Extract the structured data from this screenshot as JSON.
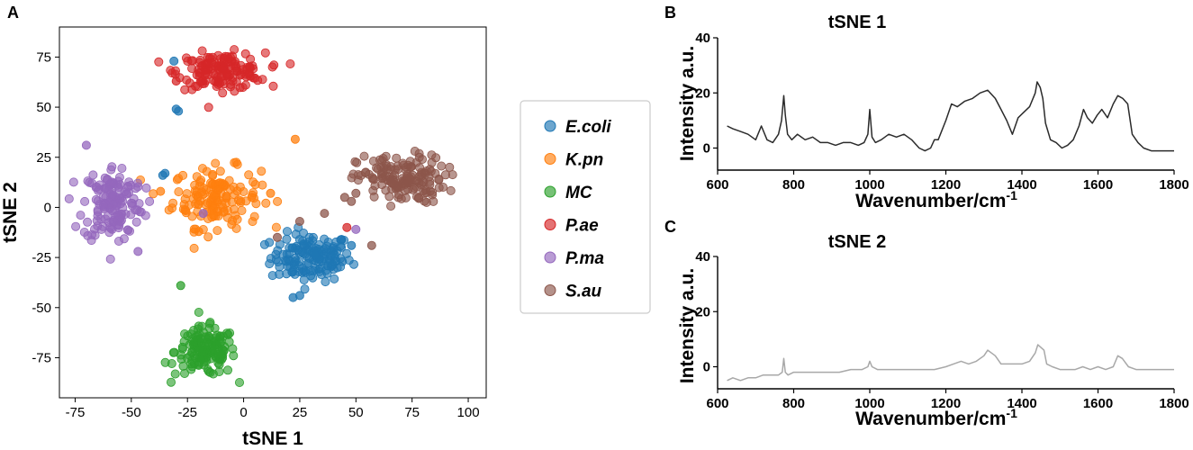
{
  "panel_labels": {
    "a": "A",
    "b": "B",
    "c": "C"
  },
  "chart_data": [
    {
      "type": "scatter",
      "panel": "A",
      "title": "",
      "xlabel": "tSNE 1",
      "ylabel": "tSNE 2",
      "xlim": [
        -82,
        108
      ],
      "ylim": [
        -95,
        90
      ],
      "xticks": [
        -75,
        -50,
        -25,
        0,
        25,
        50,
        75,
        100
      ],
      "xtick_labels": [
        "-75",
        "-50",
        "-25",
        "0",
        "25",
        "50",
        "75",
        "100"
      ],
      "yticks": [
        -75,
        -50,
        -25,
        0,
        25,
        50,
        75
      ],
      "ytick_labels": [
        "-75",
        "-50",
        "-25",
        "0",
        "25",
        "50",
        "75"
      ],
      "legend_position": "outside-right",
      "series": [
        {
          "name": "E.coli",
          "color": "#1f77b4",
          "cluster": {
            "cx": 30,
            "cy": -25,
            "sx": 12,
            "sy": 8
          },
          "outliers": [
            [
              -31,
              73
            ],
            [
              -30,
              49
            ],
            [
              -29,
              48
            ],
            [
              -36,
              16
            ],
            [
              -35,
              17
            ],
            [
              25,
              -44
            ],
            [
              22,
              -45
            ],
            [
              44,
              -27
            ],
            [
              48,
              -19
            ],
            [
              19,
              -27
            ]
          ]
        },
        {
          "name": "K.pn",
          "color": "#ff7f0e",
          "cluster": {
            "cx": -12,
            "cy": 5,
            "sx": 13,
            "sy": 10
          },
          "outliers": [
            [
              23,
              34
            ],
            [
              -37,
              8
            ],
            [
              -20,
              -12
            ],
            [
              12,
              7
            ]
          ]
        },
        {
          "name": "MC",
          "color": "#2ca02c",
          "cluster": {
            "cx": -17,
            "cy": -72,
            "sx": 9,
            "sy": 8
          },
          "outliers": [
            [
              -28,
              -39
            ]
          ]
        },
        {
          "name": "P.ae",
          "color": "#d62728",
          "cluster": {
            "cx": -10,
            "cy": 68,
            "sx": 13,
            "sy": 6
          },
          "outliers": [
            [
              46,
              -10
            ],
            [
              -30,
              63
            ]
          ]
        },
        {
          "name": "P.ma",
          "color": "#9467bd",
          "cluster": {
            "cx": -58,
            "cy": 2,
            "sx": 9,
            "sy": 13
          },
          "outliers": [
            [
              -70,
              31
            ],
            [
              -47,
              -22
            ],
            [
              50,
              -11
            ],
            [
              -18,
              -3
            ]
          ]
        },
        {
          "name": "S.au",
          "color": "#8c564b",
          "cluster": {
            "cx": 70,
            "cy": 14,
            "sx": 13,
            "sy": 8
          },
          "outliers": [
            [
              15,
              -15
            ],
            [
              25,
              -7
            ],
            [
              57,
              -19
            ],
            [
              36,
              -3
            ],
            [
              45,
              5
            ],
            [
              50,
              7
            ],
            [
              48,
              3
            ]
          ]
        }
      ]
    },
    {
      "type": "line",
      "panel": "B",
      "title": "tSNE 1",
      "xlabel": "Wavenumber/cm",
      "xlabel_superscript": "-1",
      "ylabel": "Intensity a.u.",
      "xlim": [
        600,
        1800
      ],
      "ylim": [
        -8,
        40
      ],
      "xticks": [
        600,
        800,
        1000,
        1200,
        1400,
        1600,
        1800
      ],
      "yticks": [
        0,
        20,
        40
      ],
      "color": "#2b2b2b",
      "x": [
        625,
        640,
        660,
        680,
        700,
        715,
        730,
        745,
        760,
        768,
        774,
        778,
        784,
        795,
        810,
        830,
        850,
        870,
        890,
        910,
        930,
        950,
        970,
        985,
        995,
        1000,
        1006,
        1015,
        1030,
        1050,
        1070,
        1090,
        1110,
        1130,
        1145,
        1160,
        1170,
        1180,
        1200,
        1215,
        1230,
        1250,
        1270,
        1290,
        1310,
        1330,
        1345,
        1360,
        1375,
        1390,
        1405,
        1420,
        1435,
        1440,
        1448,
        1455,
        1462,
        1475,
        1490,
        1505,
        1520,
        1535,
        1550,
        1562,
        1572,
        1585,
        1598,
        1610,
        1625,
        1640,
        1652,
        1665,
        1678,
        1690,
        1705,
        1720,
        1740,
        1760,
        1780,
        1800
      ],
      "y": [
        8,
        7,
        6,
        5,
        3,
        8,
        3,
        2,
        5,
        10,
        19,
        12,
        5,
        3,
        5,
        3,
        4,
        2,
        2,
        1,
        2,
        2,
        1,
        2,
        5,
        14,
        4,
        2,
        3,
        5,
        4,
        5,
        3,
        0,
        -1,
        0,
        3,
        3,
        10,
        16,
        15,
        17,
        18,
        20,
        21,
        18,
        14,
        10,
        5,
        11,
        13,
        15,
        20,
        24,
        22,
        18,
        9,
        3,
        2,
        0,
        1,
        3,
        8,
        14,
        11,
        9,
        12,
        14,
        11,
        16,
        19,
        18,
        16,
        5,
        2,
        0,
        -1,
        -1,
        -1,
        -1
      ]
    },
    {
      "type": "line",
      "panel": "C",
      "title": "tSNE 2",
      "xlabel": "Wavenumber/cm",
      "xlabel_superscript": "-1",
      "ylabel": "Intensity a.u.",
      "xlim": [
        600,
        1800
      ],
      "ylim": [
        -8,
        40
      ],
      "xticks": [
        600,
        800,
        1000,
        1200,
        1400,
        1600,
        1800
      ],
      "yticks": [
        0,
        20,
        40
      ],
      "color": "#a8a8a8",
      "x": [
        625,
        640,
        660,
        680,
        700,
        720,
        740,
        760,
        770,
        774,
        778,
        785,
        800,
        830,
        860,
        890,
        920,
        950,
        980,
        995,
        1000,
        1006,
        1020,
        1050,
        1080,
        1110,
        1140,
        1170,
        1200,
        1220,
        1240,
        1260,
        1280,
        1300,
        1310,
        1320,
        1330,
        1345,
        1360,
        1380,
        1400,
        1420,
        1435,
        1442,
        1450,
        1458,
        1465,
        1480,
        1500,
        1520,
        1540,
        1560,
        1580,
        1600,
        1620,
        1640,
        1652,
        1664,
        1680,
        1700,
        1720,
        1740,
        1760,
        1780,
        1800
      ],
      "y": [
        -5,
        -4,
        -5,
        -4,
        -4,
        -3,
        -3,
        -3,
        -2,
        3,
        -2,
        -3,
        -2,
        -2,
        -2,
        -2,
        -2,
        -1,
        -1,
        0,
        2,
        0,
        -1,
        -1,
        -1,
        -1,
        -1,
        -1,
        0,
        1,
        2,
        1,
        2,
        4,
        6,
        5,
        4,
        1,
        1,
        1,
        1,
        2,
        5,
        8,
        7,
        6,
        1,
        0,
        -1,
        -1,
        -1,
        0,
        -1,
        0,
        -1,
        0,
        4,
        3,
        0,
        -1,
        -1,
        -1,
        -1,
        -1,
        -1
      ]
    }
  ]
}
